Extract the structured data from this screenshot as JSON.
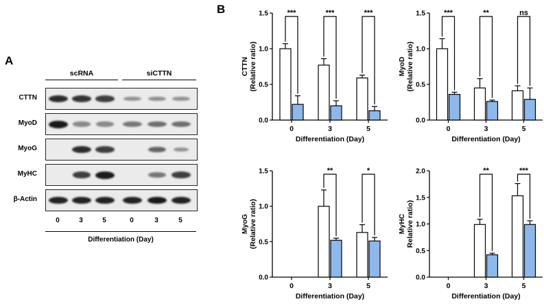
{
  "panel_a": {
    "letter": "A",
    "group_labels": [
      "scRNA",
      "siCTTN"
    ],
    "rows": [
      {
        "label": "CTTN",
        "lanes": [
          0.85,
          0.8,
          0.75,
          0.3,
          0.32,
          0.3
        ],
        "widths": [
          1,
          1,
          1,
          0.9,
          0.9,
          0.9
        ]
      },
      {
        "label": "MyoD",
        "lanes": [
          1.0,
          0.35,
          0.35,
          0.45,
          0.5,
          0.5
        ],
        "widths": [
          1,
          0.9,
          0.9,
          1,
          1,
          1
        ]
      },
      {
        "label": "MyoG",
        "lanes": [
          0.0,
          0.85,
          0.75,
          0.0,
          0.55,
          0.3
        ],
        "widths": [
          1,
          1,
          1,
          1,
          0.9,
          0.8
        ]
      },
      {
        "label": "MyHC",
        "lanes": [
          0.0,
          0.75,
          1.0,
          0.0,
          0.45,
          0.75
        ],
        "widths": [
          1,
          0.9,
          1,
          1,
          0.9,
          1
        ]
      },
      {
        "label": "β-Actin",
        "lanes": [
          0.9,
          0.9,
          0.9,
          0.9,
          0.95,
          0.9
        ],
        "widths": [
          1,
          1,
          1,
          1,
          1,
          1
        ]
      }
    ],
    "lane_labels": [
      "0",
      "3",
      "5",
      "0",
      "3",
      "5"
    ],
    "xlabel": "Differentiation (Day)"
  },
  "panel_b": {
    "letter": "B"
  },
  "colors": {
    "scRNA_bar": "#ffffff",
    "siCTTN_bar": "#8db8ec",
    "axis": "#000000"
  },
  "chart_data": [
    {
      "type": "bar",
      "ylabel": "CTTN\n(Relative ratio)",
      "xlabel": "Differentiation (Day)",
      "categories": [
        "0",
        "3",
        "5"
      ],
      "ylim": [
        0,
        1.5
      ],
      "yticks": [
        "0.0",
        "0.5",
        "1.0",
        "1.5"
      ],
      "series": [
        {
          "values": [
            1.0,
            0.77,
            0.59
          ],
          "errors": [
            0.07,
            0.09,
            0.04
          ]
        },
        {
          "values": [
            0.22,
            0.2,
            0.13
          ],
          "errors": [
            0.12,
            0.07,
            0.06
          ]
        }
      ],
      "significance": [
        "***",
        "***",
        "***"
      ]
    },
    {
      "type": "bar",
      "ylabel": "MyoD\n(Relative ratio)",
      "xlabel": "Differentiation (Day)",
      "categories": [
        "0",
        "3",
        "5"
      ],
      "ylim": [
        0,
        1.5
      ],
      "yticks": [
        "0.0",
        "0.5",
        "1.0",
        "1.5"
      ],
      "series": [
        {
          "values": [
            1.0,
            0.45,
            0.41
          ],
          "errors": [
            0.14,
            0.13,
            0.07
          ]
        },
        {
          "values": [
            0.36,
            0.26,
            0.29
          ],
          "errors": [
            0.03,
            0.02,
            0.16
          ]
        }
      ],
      "significance": [
        "***",
        "**",
        "ns"
      ]
    },
    {
      "type": "bar",
      "ylabel": "MyoG\n(Relative ratio)",
      "xlabel": "Differentiation (Day)",
      "categories": [
        "0",
        "3",
        "5"
      ],
      "ylim": [
        0,
        1.5
      ],
      "yticks": [
        "0.0",
        "0.5",
        "1.0",
        "1.5"
      ],
      "series": [
        {
          "values": [
            0,
            1.0,
            0.63
          ],
          "errors": [
            0,
            0.23,
            0.11
          ]
        },
        {
          "values": [
            0,
            0.52,
            0.51
          ],
          "errors": [
            0,
            0.03,
            0.05
          ]
        }
      ],
      "significance": [
        "",
        "**",
        "*"
      ]
    },
    {
      "type": "bar",
      "ylabel": "MyHC\nRelative ratio)",
      "xlabel": "Differentiation (Day)",
      "categories": [
        "0",
        "3",
        "5"
      ],
      "ylim": [
        0,
        2.0
      ],
      "yticks": [
        "0.0",
        "0.5",
        "1.0",
        "1.5",
        "2.0"
      ],
      "series": [
        {
          "values": [
            0,
            0.99,
            1.53
          ],
          "errors": [
            0,
            0.1,
            0.23
          ]
        },
        {
          "values": [
            0,
            0.42,
            0.99
          ],
          "errors": [
            0,
            0.03,
            0.07
          ]
        }
      ],
      "significance": [
        "",
        "**",
        "***"
      ]
    }
  ]
}
